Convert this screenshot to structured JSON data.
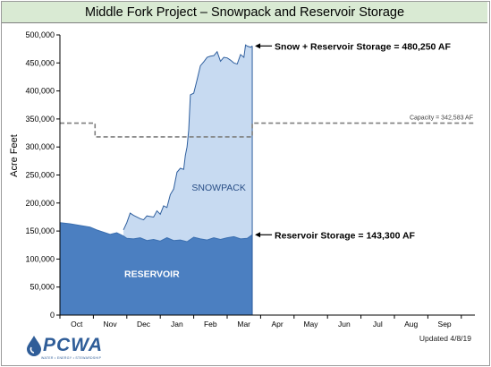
{
  "header": {
    "title": "Middle Fork Project – Snowpack and Reservoir Storage"
  },
  "footer": {
    "logo_text": "PCWA",
    "logo_sub": "WATER • ENERGY • STEWARDSHIP",
    "updated": "Updated 4/8/19"
  },
  "colors": {
    "reservoir": "#4b7fc1",
    "snowpack": "#c7daf1",
    "snow_line": "#2f5f9e",
    "capacity": "#7f7f7f",
    "plot_bg": "#ffffff"
  },
  "chart_data": {
    "type": "area",
    "ylabel": "Acre Feet",
    "ylim": [
      0,
      500000
    ],
    "yticks": [
      0,
      50000,
      100000,
      150000,
      200000,
      250000,
      300000,
      350000,
      400000,
      450000,
      500000
    ],
    "ytick_labels": [
      "0",
      "50,000",
      "100,000",
      "150,000",
      "200,000",
      "250,000",
      "300,000",
      "350,000",
      "400,000",
      "450,000",
      "500,000"
    ],
    "months": [
      "Oct",
      "Nov",
      "Dec",
      "Jan",
      "Feb",
      "Mar",
      "Apr",
      "May",
      "Jun",
      "Jul",
      "Aug",
      "Sep"
    ],
    "x_unit": "month index (0 = Oct 1)",
    "grid": false,
    "series": [
      {
        "key": "reservoir",
        "x": [
          0,
          0.3,
          0.6,
          0.9,
          1.1,
          1.3,
          1.5,
          1.7,
          1.9,
          2.0,
          2.2,
          2.4,
          2.6,
          2.8,
          3.0,
          3.2,
          3.4,
          3.6,
          3.8,
          4.0,
          4.2,
          4.4,
          4.6,
          4.8,
          5.0,
          5.2,
          5.4,
          5.6,
          5.75
        ],
        "values": [
          165000,
          163000,
          160000,
          157000,
          152000,
          148000,
          144000,
          147000,
          141000,
          137000,
          136000,
          138000,
          133000,
          135000,
          132000,
          138000,
          133000,
          134000,
          131000,
          139000,
          136000,
          134000,
          138000,
          135000,
          138000,
          140000,
          136000,
          137000,
          143300
        ]
      },
      {
        "key": "snow_plus_reservoir",
        "x": [
          1.9,
          2.0,
          2.1,
          2.2,
          2.3,
          2.4,
          2.5,
          2.6,
          2.7,
          2.8,
          2.9,
          3.0,
          3.1,
          3.2,
          3.3,
          3.4,
          3.5,
          3.6,
          3.7,
          3.75,
          3.8,
          3.85,
          3.9,
          4.0,
          4.1,
          4.2,
          4.3,
          4.4,
          4.5,
          4.6,
          4.7,
          4.8,
          4.9,
          5.0,
          5.1,
          5.2,
          5.3,
          5.4,
          5.5,
          5.55,
          5.6,
          5.7,
          5.75
        ],
        "values": [
          152000,
          165000,
          182000,
          178000,
          175000,
          172000,
          170000,
          177000,
          176000,
          175000,
          186000,
          180000,
          195000,
          192000,
          215000,
          225000,
          255000,
          262000,
          260000,
          285000,
          300000,
          330000,
          393000,
          396000,
          420000,
          445000,
          452000,
          460000,
          462000,
          463000,
          470000,
          453000,
          460000,
          459000,
          455000,
          450000,
          448000,
          465000,
          460000,
          482000,
          480000,
          478000,
          480250
        ]
      }
    ],
    "capacity": {
      "label": "Capacity = 342,583 AF",
      "value": 342583,
      "reduced_value": 318000,
      "reduced_from": 1.05,
      "reduced_to": 5.75
    },
    "annotations": {
      "snow_total": {
        "label": "Snow + Reservoir Storage = 480,250 AF",
        "value": 480250
      },
      "reservoir_total": {
        "label": "Reservoir Storage = 143,300 AF",
        "value": 143300
      }
    },
    "area_labels": {
      "snowpack": "SNOWPACK",
      "reservoir": "RESERVOIR"
    }
  }
}
